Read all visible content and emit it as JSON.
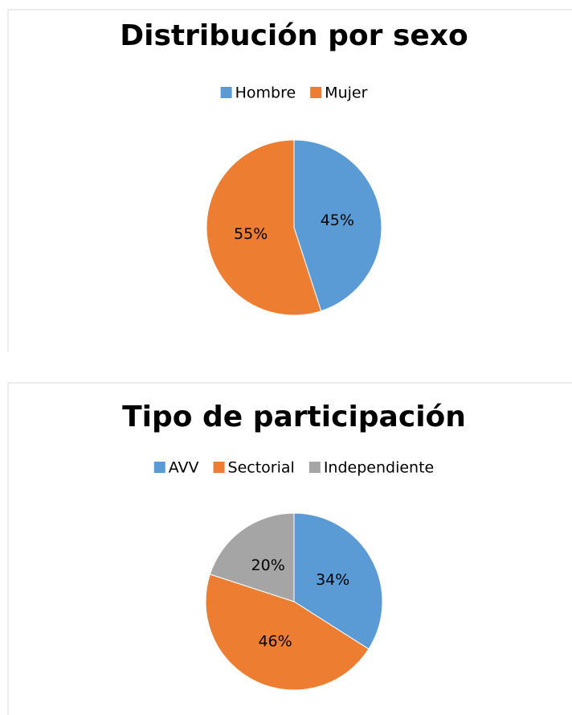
{
  "chart_data": [
    {
      "type": "pie",
      "title": "Distribución por sexo",
      "categories": [
        "Hombre",
        "Mujer"
      ],
      "values": [
        45,
        55
      ],
      "value_labels": [
        "45%",
        "55%"
      ],
      "colors": [
        "#5b9bd5",
        "#ed7d31"
      ],
      "legend": "top"
    },
    {
      "type": "pie",
      "title": "Tipo de participación",
      "categories": [
        "AVV",
        "Sectorial",
        "Independiente"
      ],
      "values": [
        34,
        46,
        20
      ],
      "value_labels": [
        "34%",
        "46%",
        "20%"
      ],
      "colors": [
        "#5b9bd5",
        "#ed7d31",
        "#a5a5a5"
      ],
      "legend": "top"
    }
  ]
}
